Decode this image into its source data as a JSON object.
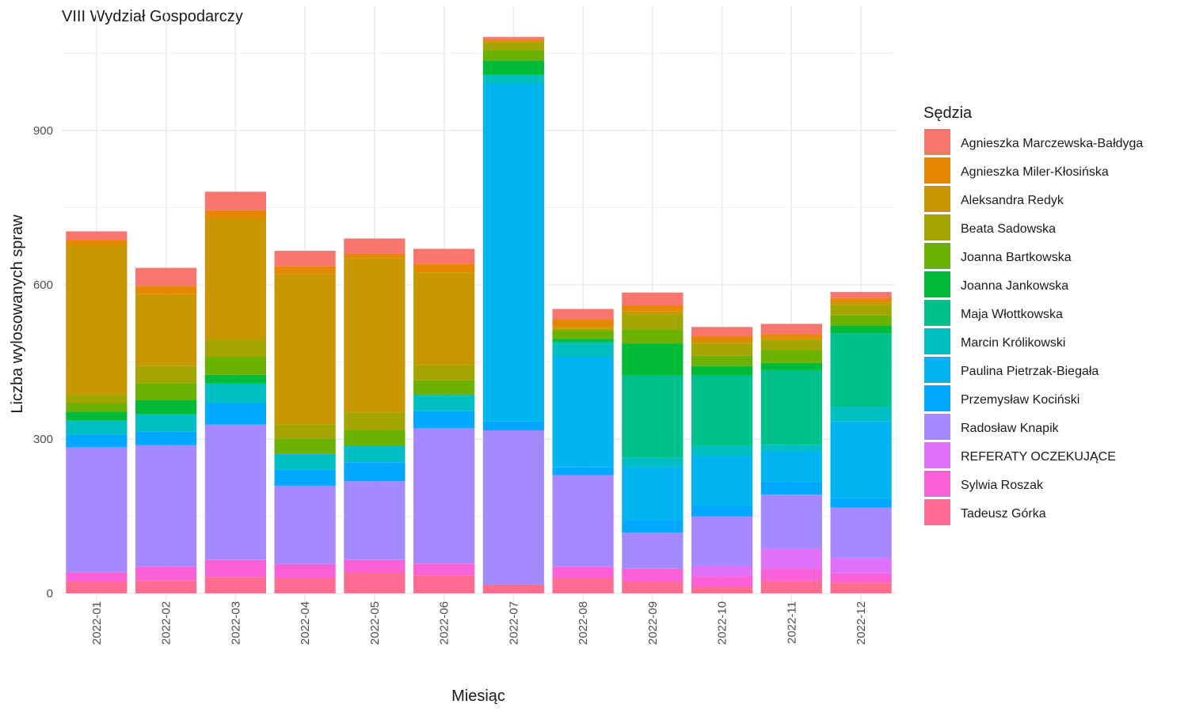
{
  "chart_data": {
    "type": "bar",
    "stacked": true,
    "title": "VIII Wydział Gospodarczy",
    "xlabel": "Miesiąc",
    "ylabel": "Liczba wylosowanych spraw",
    "legend_title": "Sędzia",
    "legend_position": "right",
    "grid": true,
    "ylim": [
      0,
      1100
    ],
    "yticks": [
      0,
      300,
      600,
      900
    ],
    "categories": [
      "2022-01",
      "2022-02",
      "2022-03",
      "2022-04",
      "2022-05",
      "2022-06",
      "2022-07",
      "2022-08",
      "2022-09",
      "2022-10",
      "2022-11",
      "2022-12"
    ],
    "series": [
      {
        "name": "Agnieszka Marczewska-Bałdyga",
        "color": "#F8766D",
        "values": [
          17,
          35,
          36,
          30,
          30,
          29,
          5,
          20,
          25,
          18,
          20,
          12
        ]
      },
      {
        "name": "Agnieszka Miler-Kłosińska",
        "color": "#E58700",
        "values": [
          10,
          16,
          15,
          15,
          8,
          17,
          3,
          15,
          12,
          10,
          8,
          8
        ]
      },
      {
        "name": "Aleksandra Redyk",
        "color": "#C99800",
        "values": [
          290,
          140,
          237,
          292,
          300,
          180,
          3,
          3,
          5,
          5,
          3,
          5
        ]
      },
      {
        "name": "Beata Sadowska",
        "color": "#A3A500",
        "values": [
          17,
          33,
          33,
          28,
          35,
          30,
          15,
          5,
          30,
          23,
          20,
          20
        ]
      },
      {
        "name": "Joanna Bartkowska",
        "color": "#6BB100",
        "values": [
          17,
          33,
          35,
          30,
          30,
          28,
          20,
          15,
          27,
          20,
          25,
          20
        ]
      },
      {
        "name": "Joanna Jankowska",
        "color": "#00BA38",
        "values": [
          17,
          28,
          17,
          0,
          0,
          0,
          28,
          5,
          62,
          18,
          14,
          15
        ]
      },
      {
        "name": "Maja Włottkowska",
        "color": "#00C08B",
        "values": [
          0,
          0,
          0,
          0,
          0,
          0,
          0,
          5,
          160,
          137,
          145,
          143
        ]
      },
      {
        "name": "Marcin Królikowski",
        "color": "#00BFC4",
        "values": [
          27,
          33,
          38,
          30,
          32,
          32,
          18,
          25,
          18,
          20,
          12,
          28
        ]
      },
      {
        "name": "Paulina Pietrzak-Biegała",
        "color": "#00B4F0",
        "values": [
          0,
          0,
          0,
          0,
          0,
          0,
          655,
          215,
          103,
          97,
          60,
          150
        ]
      },
      {
        "name": "Przemysław Kociński",
        "color": "#00A9FF",
        "values": [
          25,
          27,
          42,
          32,
          37,
          33,
          18,
          15,
          25,
          20,
          25,
          18
        ]
      },
      {
        "name": "Radosław Knapik",
        "color": "#A58AFF",
        "values": [
          243,
          236,
          263,
          152,
          153,
          263,
          300,
          178,
          70,
          97,
          105,
          98
        ]
      },
      {
        "name": "REFERATY OCZEKUJĄCE",
        "color": "#DF70F8",
        "values": [
          0,
          0,
          0,
          0,
          0,
          0,
          0,
          0,
          0,
          20,
          40,
          30
        ]
      },
      {
        "name": "Sylwia Roszak",
        "color": "#FB61D7",
        "values": [
          18,
          27,
          33,
          27,
          25,
          23,
          0,
          22,
          25,
          20,
          23,
          18
        ]
      },
      {
        "name": "Tadeusz Górka",
        "color": "#FF6C91",
        "values": [
          23,
          25,
          32,
          30,
          40,
          35,
          17,
          30,
          23,
          13,
          24,
          21
        ]
      }
    ]
  }
}
